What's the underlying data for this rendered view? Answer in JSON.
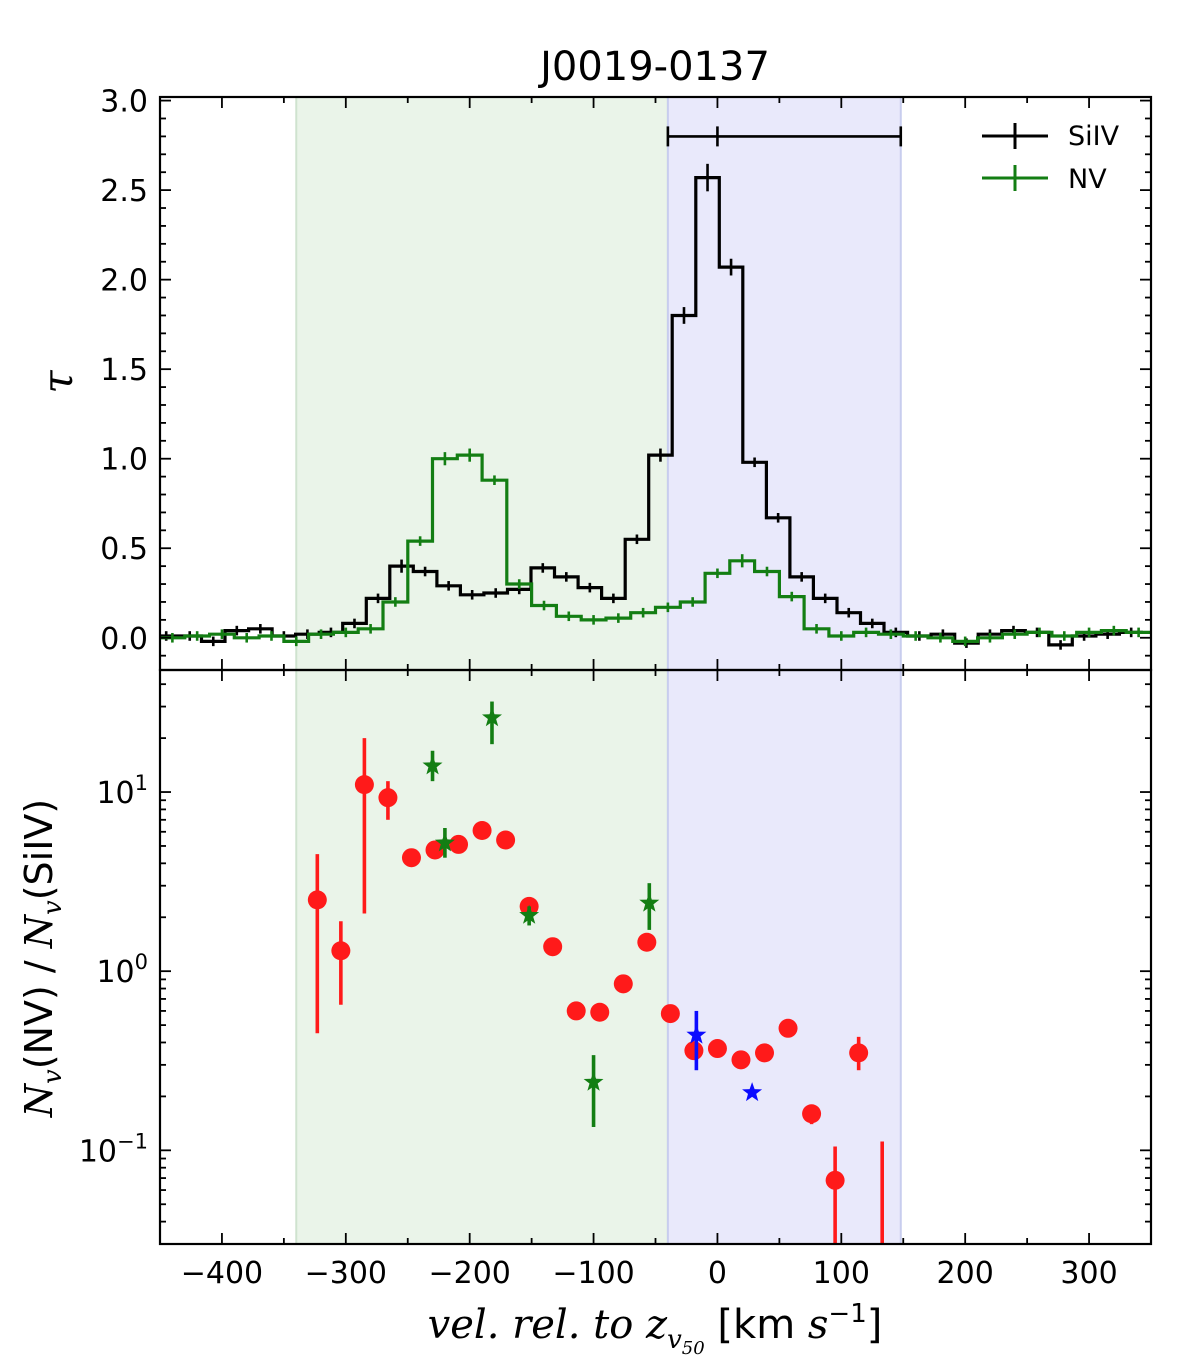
{
  "chart_data": {
    "title": "J0019-0137",
    "type": "line",
    "xlabel": "vel. rel. to z_v50 [km s^-1]",
    "xlim": [
      -450,
      350
    ],
    "x_ticks": [
      -400,
      -300,
      -200,
      -100,
      0,
      100,
      200,
      300
    ],
    "x_tick_labels": [
      "−400",
      "−300",
      "−200",
      "−100",
      "0",
      "100",
      "200",
      "300"
    ],
    "shaded_regions": [
      {
        "name": "green-region",
        "x0": -340,
        "x1": -40,
        "color": "#eaf4e9"
      },
      {
        "name": "blue-region",
        "x0": -40,
        "x1": 148,
        "color": "#e9e9fb"
      }
    ],
    "top_panel": {
      "ylabel": "τ",
      "ylim": [
        -0.18,
        3.02
      ],
      "y_ticks": [
        0.0,
        0.5,
        1.0,
        1.5,
        2.0,
        2.5,
        3.0
      ],
      "y_tick_labels": [
        "0.0",
        "0.5",
        "1.0",
        "1.5",
        "2.0",
        "2.5",
        "3.0"
      ],
      "range_bar": {
        "x0": -40,
        "x1": 148,
        "center": 0,
        "y": 2.8
      },
      "legend": {
        "position": "top-right",
        "entries": [
          {
            "label": "SiIV",
            "color": "#000000"
          },
          {
            "label": "NV",
            "color": "#137e13"
          }
        ]
      },
      "series": [
        {
          "name": "SiIV",
          "color": "#000000",
          "step": 19,
          "x": [
            -445,
            -426,
            -407,
            -388,
            -369,
            -350,
            -331,
            -312,
            -293,
            -274,
            -255,
            -236,
            -217,
            -198,
            -179,
            -160,
            -141,
            -122,
            -103,
            -84,
            -65,
            -46,
            -27,
            -8,
            11,
            30,
            49,
            68,
            87,
            106,
            125,
            144,
            163,
            182,
            201,
            220,
            239,
            258,
            277,
            296,
            315,
            334
          ],
          "values": [
            0.01,
            0.01,
            -0.02,
            0.04,
            0.05,
            0.01,
            0.02,
            0.03,
            0.08,
            0.22,
            0.4,
            0.37,
            0.29,
            0.24,
            0.25,
            0.27,
            0.39,
            0.34,
            0.28,
            0.22,
            0.55,
            1.02,
            1.8,
            2.57,
            2.07,
            0.98,
            0.67,
            0.34,
            0.22,
            0.14,
            0.08,
            0.03,
            0.01,
            0.02,
            -0.03,
            0.02,
            0.04,
            0.03,
            -0.04,
            0.01,
            0.02,
            0.03
          ],
          "errors": [
            0.01,
            0.01,
            0.01,
            0.01,
            0.01,
            0.01,
            0.01,
            0.01,
            0.01,
            0.01,
            0.02,
            0.01,
            0.01,
            0.01,
            0.01,
            0.01,
            0.01,
            0.01,
            0.01,
            0.01,
            0.01,
            0.02,
            0.03,
            0.06,
            0.03,
            0.01,
            0.01,
            0.01,
            0.01,
            0.01,
            0.01,
            0.01,
            0.01,
            0.01,
            0.01,
            0.01,
            0.01,
            0.01,
            0.01,
            0.01,
            0.01,
            0.01
          ]
        },
        {
          "name": "NV",
          "color": "#137e13",
          "step": 20,
          "x": [
            -440,
            -420,
            -400,
            -380,
            -360,
            -340,
            -320,
            -300,
            -280,
            -260,
            -240,
            -220,
            -200,
            -180,
            -160,
            -140,
            -120,
            -100,
            -80,
            -60,
            -40,
            -20,
            0,
            20,
            40,
            60,
            80,
            100,
            120,
            140,
            160,
            180,
            200,
            220,
            240,
            260,
            280,
            300,
            320,
            340
          ],
          "values": [
            0.0,
            0.01,
            0.02,
            0.0,
            0.01,
            -0.02,
            0.02,
            0.03,
            0.05,
            0.2,
            0.54,
            1.0,
            1.02,
            0.88,
            0.3,
            0.18,
            0.12,
            0.1,
            0.11,
            0.14,
            0.17,
            0.2,
            0.36,
            0.43,
            0.37,
            0.23,
            0.05,
            0.01,
            0.03,
            0.02,
            0.01,
            0.0,
            -0.02,
            0.0,
            0.02,
            0.03,
            0.01,
            0.03,
            0.04,
            0.03
          ],
          "errors": [
            0.01,
            0.01,
            0.01,
            0.01,
            0.01,
            0.01,
            0.01,
            0.01,
            0.01,
            0.01,
            0.01,
            0.02,
            0.02,
            0.01,
            0.01,
            0.01,
            0.01,
            0.01,
            0.01,
            0.01,
            0.01,
            0.01,
            0.01,
            0.02,
            0.01,
            0.01,
            0.01,
            0.01,
            0.01,
            0.01,
            0.01,
            0.01,
            0.01,
            0.01,
            0.01,
            0.01,
            0.01,
            0.01,
            0.01,
            0.01
          ]
        }
      ]
    },
    "bottom_panel": {
      "ylabel": "N_v(NV) / N_v(SiIV)",
      "yscale": "log",
      "ylim": [
        0.03,
        48
      ],
      "y_ticks": [
        0.1,
        1,
        10
      ],
      "y_tick_labels": [
        {
          "base": "10",
          "exp": "−1"
        },
        {
          "base": "10",
          "exp": "0"
        },
        {
          "base": "10",
          "exp": "1"
        }
      ],
      "series": [
        {
          "name": "red-circles",
          "marker": "circle",
          "color": "#ff1a1a",
          "points": [
            {
              "x": -323,
              "y": 2.5,
              "lo": 0.45,
              "hi": 4.5
            },
            {
              "x": -304,
              "y": 1.3,
              "lo": 0.65,
              "hi": 1.9
            },
            {
              "x": -285,
              "y": 11.0,
              "lo": 2.1,
              "hi": 20.0
            },
            {
              "x": -266,
              "y": 9.3,
              "lo": 7.0,
              "hi": 11.5
            },
            {
              "x": -247,
              "y": 4.3
            },
            {
              "x": -228,
              "y": 4.75
            },
            {
              "x": -209,
              "y": 5.1
            },
            {
              "x": -190,
              "y": 6.1
            },
            {
              "x": -171,
              "y": 5.4
            },
            {
              "x": -152,
              "y": 2.3
            },
            {
              "x": -133,
              "y": 1.37
            },
            {
              "x": -114,
              "y": 0.6
            },
            {
              "x": -95,
              "y": 0.59
            },
            {
              "x": -76,
              "y": 0.85
            },
            {
              "x": -57,
              "y": 1.45
            },
            {
              "x": -38,
              "y": 0.58
            },
            {
              "x": -19,
              "y": 0.36
            },
            {
              "x": 0,
              "y": 0.37
            },
            {
              "x": 19,
              "y": 0.32
            },
            {
              "x": 38,
              "y": 0.35
            },
            {
              "x": 57,
              "y": 0.48
            },
            {
              "x": 76,
              "y": 0.16,
              "lo": 0.14,
              "hi": 0.18
            },
            {
              "x": 95,
              "y": 0.068,
              "lo": 0.03,
              "hi": 0.105
            },
            {
              "x": 114,
              "y": 0.35,
              "lo": 0.28,
              "hi": 0.43
            },
            {
              "x": 133,
              "y": null,
              "lo": 0.03,
              "hi": 0.112
            }
          ]
        },
        {
          "name": "green-stars",
          "marker": "star",
          "color": "#137e13",
          "points": [
            {
              "x": -230,
              "y": 14.0,
              "lo": 11.5,
              "hi": 17.0
            },
            {
              "x": -220,
              "y": 5.2,
              "lo": 4.3,
              "hi": 6.3
            },
            {
              "x": -182,
              "y": 26.0,
              "lo": 18.5,
              "hi": 32.0
            },
            {
              "x": -152,
              "y": 2.05,
              "lo": 1.8,
              "hi": 2.3
            },
            {
              "x": -100,
              "y": 0.24,
              "lo": 0.135,
              "hi": 0.34
            },
            {
              "x": -55,
              "y": 2.4,
              "lo": 1.7,
              "hi": 3.1
            }
          ]
        },
        {
          "name": "blue-stars",
          "marker": "star",
          "color": "#0b0bff",
          "points": [
            {
              "x": -17,
              "y": 0.44,
              "lo": 0.28,
              "hi": 0.6
            },
            {
              "x": 28,
              "y": 0.21
            }
          ]
        }
      ]
    }
  }
}
